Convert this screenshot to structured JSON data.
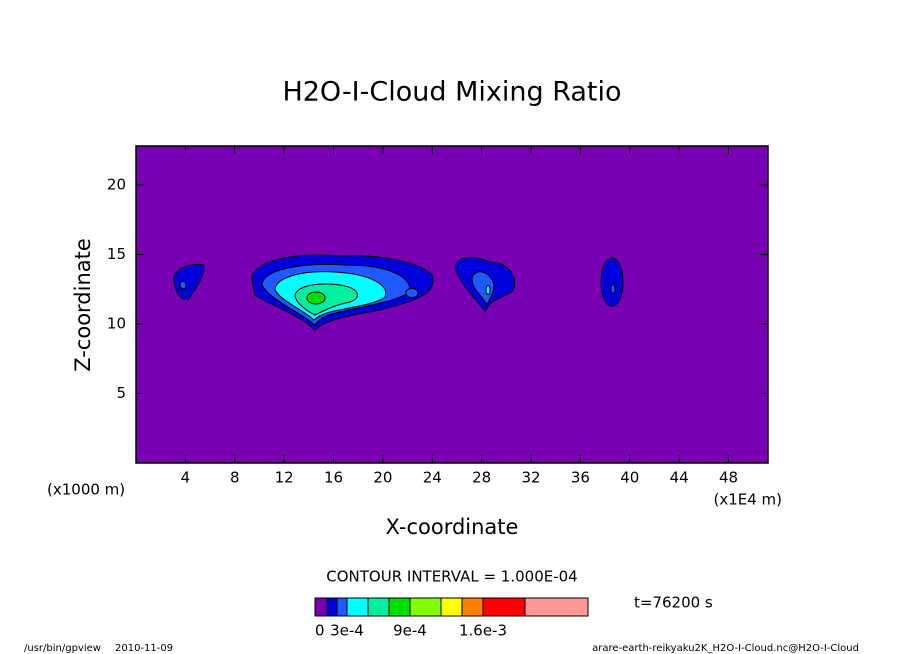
{
  "chart_data": {
    "type": "contour",
    "title": "H2O-I-Cloud Mixing Ratio",
    "x_label": "X-coordinate",
    "y_label": "Z-coordinate",
    "x_unit": "(x1000 m)",
    "x_unit_right": "(x1E4 m)",
    "xlim": [
      0,
      51.2
    ],
    "ylim": [
      0,
      22.8
    ],
    "xticks": [
      4,
      8,
      12,
      16,
      20,
      24,
      28,
      32,
      36,
      40,
      44,
      48
    ],
    "yticks": [
      5,
      10,
      15,
      20
    ],
    "contour_interval": "CONTOUR INTERVAL = 1.000E-04",
    "time_label": "t=76200 s",
    "levels": [
      0,
      0.0001,
      0.0002,
      0.0003,
      0.0005,
      0.0007,
      0.0009,
      0.0011,
      0.0013,
      0.0016,
      0.002,
      0.003
    ],
    "colors": [
      "#7a00b4",
      "#0000dc",
      "#1e5aff",
      "#00ffff",
      "#00f0a0",
      "#00e000",
      "#80ff00",
      "#ffff00",
      "#ff8000",
      "#ff0000",
      "#ff9999"
    ],
    "colorbar_ticks": [
      {
        "value": 0,
        "label": "0"
      },
      {
        "value": 0.0003,
        "label": "3e-4"
      },
      {
        "value": 0.0009,
        "label": "9e-4"
      },
      {
        "value": 0.0016,
        "label": "1.6e-3"
      }
    ],
    "footer_program": "/usr/bin/gpview",
    "footer_date": "2010-11-09",
    "footer_source": "arare-earth-reikyaku2K_H2O-I-Cloud.nc@H2O-I-Cloud"
  }
}
